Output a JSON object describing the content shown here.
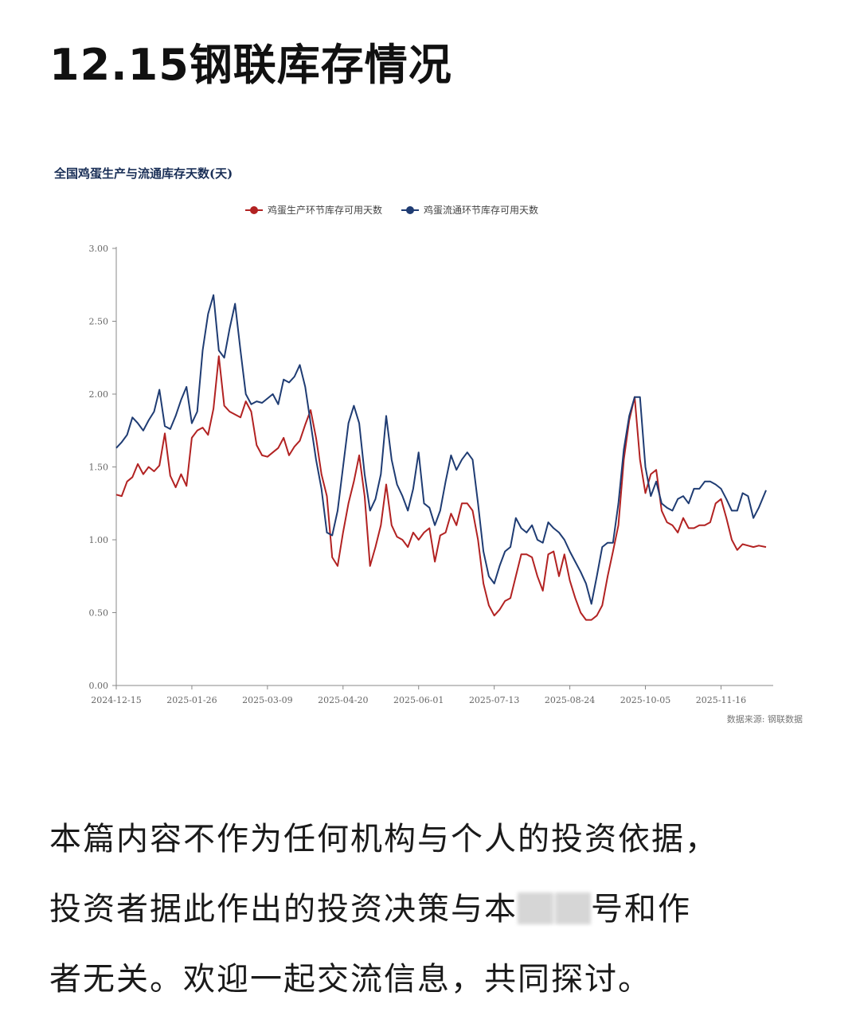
{
  "header": {
    "title": "12.15钢联库存情况"
  },
  "chart_data": {
    "type": "line",
    "title": "全国鸡蛋生产与流通库存天数(天)",
    "source": "数据来源: 钢联数据",
    "x_ticks": [
      "2024-12-15",
      "2025-01-26",
      "2025-03-09",
      "2025-04-20",
      "2025-06-01",
      "2025-07-13",
      "2025-08-24",
      "2025-10-05",
      "2025-11-16"
    ],
    "y_ticks": [
      "0.00",
      "0.50",
      "1.00",
      "1.50",
      "2.00",
      "2.50",
      "3.00"
    ],
    "ylim": [
      0,
      3
    ],
    "xlim": [
      "2024-12-15",
      "2025-12-15"
    ],
    "legend_position": "top",
    "grid": false,
    "series": [
      {
        "name": "鸡蛋生产环节库存可用天数",
        "color": "#b22222",
        "points": [
          [
            "2024-12-15",
            1.31
          ],
          [
            "2024-12-18",
            1.3
          ],
          [
            "2024-12-21",
            1.4
          ],
          [
            "2024-12-24",
            1.43
          ],
          [
            "2024-12-27",
            1.52
          ],
          [
            "2024-12-30",
            1.45
          ],
          [
            "2025-01-02",
            1.5
          ],
          [
            "2025-01-05",
            1.47
          ],
          [
            "2025-01-08",
            1.51
          ],
          [
            "2025-01-11",
            1.73
          ],
          [
            "2025-01-14",
            1.44
          ],
          [
            "2025-01-17",
            1.36
          ],
          [
            "2025-01-20",
            1.45
          ],
          [
            "2025-01-23",
            1.37
          ],
          [
            "2025-01-26",
            1.7
          ],
          [
            "2025-01-29",
            1.75
          ],
          [
            "2025-02-01",
            1.77
          ],
          [
            "2025-02-04",
            1.72
          ],
          [
            "2025-02-07",
            1.9
          ],
          [
            "2025-02-10",
            2.26
          ],
          [
            "2025-02-13",
            1.92
          ],
          [
            "2025-02-16",
            1.88
          ],
          [
            "2025-02-19",
            1.86
          ],
          [
            "2025-02-22",
            1.84
          ],
          [
            "2025-02-25",
            1.95
          ],
          [
            "2025-02-28",
            1.88
          ],
          [
            "2025-03-03",
            1.65
          ],
          [
            "2025-03-06",
            1.58
          ],
          [
            "2025-03-09",
            1.57
          ],
          [
            "2025-03-12",
            1.6
          ],
          [
            "2025-03-15",
            1.63
          ],
          [
            "2025-03-18",
            1.7
          ],
          [
            "2025-03-21",
            1.58
          ],
          [
            "2025-03-24",
            1.64
          ],
          [
            "2025-03-27",
            1.68
          ],
          [
            "2025-03-30",
            1.79
          ],
          [
            "2025-04-02",
            1.89
          ],
          [
            "2025-04-05",
            1.7
          ],
          [
            "2025-04-08",
            1.45
          ],
          [
            "2025-04-11",
            1.3
          ],
          [
            "2025-04-14",
            0.88
          ],
          [
            "2025-04-17",
            0.82
          ],
          [
            "2025-04-20",
            1.05
          ],
          [
            "2025-04-23",
            1.25
          ],
          [
            "2025-04-26",
            1.4
          ],
          [
            "2025-04-29",
            1.58
          ],
          [
            "2025-05-02",
            1.3
          ],
          [
            "2025-05-05",
            0.82
          ],
          [
            "2025-05-08",
            0.95
          ],
          [
            "2025-05-11",
            1.1
          ],
          [
            "2025-05-14",
            1.38
          ],
          [
            "2025-05-17",
            1.1
          ],
          [
            "2025-05-20",
            1.02
          ],
          [
            "2025-05-23",
            1.0
          ],
          [
            "2025-05-26",
            0.95
          ],
          [
            "2025-05-29",
            1.05
          ],
          [
            "2025-06-01",
            1.0
          ],
          [
            "2025-06-04",
            1.05
          ],
          [
            "2025-06-07",
            1.08
          ],
          [
            "2025-06-10",
            0.85
          ],
          [
            "2025-06-13",
            1.03
          ],
          [
            "2025-06-16",
            1.05
          ],
          [
            "2025-06-19",
            1.18
          ],
          [
            "2025-06-22",
            1.1
          ],
          [
            "2025-06-25",
            1.25
          ],
          [
            "2025-06-28",
            1.25
          ],
          [
            "2025-07-01",
            1.2
          ],
          [
            "2025-07-04",
            1.0
          ],
          [
            "2025-07-07",
            0.7
          ],
          [
            "2025-07-10",
            0.55
          ],
          [
            "2025-07-13",
            0.48
          ],
          [
            "2025-07-16",
            0.52
          ],
          [
            "2025-07-19",
            0.58
          ],
          [
            "2025-07-22",
            0.6
          ],
          [
            "2025-07-25",
            0.75
          ],
          [
            "2025-07-28",
            0.9
          ],
          [
            "2025-07-31",
            0.9
          ],
          [
            "2025-08-03",
            0.88
          ],
          [
            "2025-08-06",
            0.75
          ],
          [
            "2025-08-09",
            0.65
          ],
          [
            "2025-08-12",
            0.9
          ],
          [
            "2025-08-15",
            0.92
          ],
          [
            "2025-08-18",
            0.75
          ],
          [
            "2025-08-21",
            0.9
          ],
          [
            "2025-08-24",
            0.72
          ],
          [
            "2025-08-27",
            0.6
          ],
          [
            "2025-08-30",
            0.5
          ],
          [
            "2025-09-02",
            0.45
          ],
          [
            "2025-09-05",
            0.45
          ],
          [
            "2025-09-08",
            0.48
          ],
          [
            "2025-09-11",
            0.55
          ],
          [
            "2025-09-14",
            0.75
          ],
          [
            "2025-09-17",
            0.92
          ],
          [
            "2025-09-20",
            1.1
          ],
          [
            "2025-09-23",
            1.55
          ],
          [
            "2025-09-26",
            1.82
          ],
          [
            "2025-09-29",
            1.98
          ],
          [
            "2025-10-02",
            1.55
          ],
          [
            "2025-10-05",
            1.32
          ],
          [
            "2025-10-08",
            1.45
          ],
          [
            "2025-10-11",
            1.48
          ],
          [
            "2025-10-14",
            1.2
          ],
          [
            "2025-10-17",
            1.12
          ],
          [
            "2025-10-20",
            1.1
          ],
          [
            "2025-10-23",
            1.05
          ],
          [
            "2025-10-26",
            1.15
          ],
          [
            "2025-10-29",
            1.08
          ],
          [
            "2025-11-01",
            1.08
          ],
          [
            "2025-11-04",
            1.1
          ],
          [
            "2025-11-07",
            1.1
          ],
          [
            "2025-11-10",
            1.12
          ],
          [
            "2025-11-13",
            1.25
          ],
          [
            "2025-11-16",
            1.28
          ],
          [
            "2025-11-19",
            1.15
          ],
          [
            "2025-11-22",
            1.0
          ],
          [
            "2025-11-25",
            0.93
          ],
          [
            "2025-11-28",
            0.97
          ],
          [
            "2025-12-01",
            0.96
          ],
          [
            "2025-12-04",
            0.95
          ],
          [
            "2025-12-07",
            0.96
          ],
          [
            "2025-12-11",
            0.95
          ]
        ]
      },
      {
        "name": "鸡蛋流通环节库存可用天数",
        "color": "#1f3c73",
        "points": [
          [
            "2024-12-15",
            1.63
          ],
          [
            "2024-12-18",
            1.67
          ],
          [
            "2024-12-21",
            1.72
          ],
          [
            "2024-12-24",
            1.84
          ],
          [
            "2024-12-27",
            1.8
          ],
          [
            "2024-12-30",
            1.75
          ],
          [
            "2025-01-02",
            1.82
          ],
          [
            "2025-01-05",
            1.88
          ],
          [
            "2025-01-08",
            2.03
          ],
          [
            "2025-01-11",
            1.78
          ],
          [
            "2025-01-14",
            1.76
          ],
          [
            "2025-01-17",
            1.85
          ],
          [
            "2025-01-20",
            1.96
          ],
          [
            "2025-01-23",
            2.05
          ],
          [
            "2025-01-26",
            1.8
          ],
          [
            "2025-01-29",
            1.88
          ],
          [
            "2025-02-01",
            2.3
          ],
          [
            "2025-02-04",
            2.55
          ],
          [
            "2025-02-07",
            2.68
          ],
          [
            "2025-02-10",
            2.3
          ],
          [
            "2025-02-13",
            2.25
          ],
          [
            "2025-02-16",
            2.45
          ],
          [
            "2025-02-19",
            2.62
          ],
          [
            "2025-02-22",
            2.3
          ],
          [
            "2025-02-25",
            2.0
          ],
          [
            "2025-02-28",
            1.93
          ],
          [
            "2025-03-03",
            1.95
          ],
          [
            "2025-03-06",
            1.94
          ],
          [
            "2025-03-09",
            1.97
          ],
          [
            "2025-03-12",
            2.0
          ],
          [
            "2025-03-15",
            1.93
          ],
          [
            "2025-03-18",
            2.1
          ],
          [
            "2025-03-21",
            2.08
          ],
          [
            "2025-03-24",
            2.12
          ],
          [
            "2025-03-27",
            2.2
          ],
          [
            "2025-03-30",
            2.05
          ],
          [
            "2025-04-02",
            1.8
          ],
          [
            "2025-04-05",
            1.55
          ],
          [
            "2025-04-08",
            1.35
          ],
          [
            "2025-04-11",
            1.05
          ],
          [
            "2025-04-14",
            1.03
          ],
          [
            "2025-04-17",
            1.2
          ],
          [
            "2025-04-20",
            1.5
          ],
          [
            "2025-04-23",
            1.8
          ],
          [
            "2025-04-26",
            1.92
          ],
          [
            "2025-04-29",
            1.8
          ],
          [
            "2025-05-02",
            1.45
          ],
          [
            "2025-05-05",
            1.2
          ],
          [
            "2025-05-08",
            1.28
          ],
          [
            "2025-05-11",
            1.45
          ],
          [
            "2025-05-14",
            1.85
          ],
          [
            "2025-05-17",
            1.55
          ],
          [
            "2025-05-20",
            1.38
          ],
          [
            "2025-05-23",
            1.3
          ],
          [
            "2025-05-26",
            1.2
          ],
          [
            "2025-05-29",
            1.35
          ],
          [
            "2025-06-01",
            1.6
          ],
          [
            "2025-06-04",
            1.25
          ],
          [
            "2025-06-07",
            1.22
          ],
          [
            "2025-06-10",
            1.1
          ],
          [
            "2025-06-13",
            1.2
          ],
          [
            "2025-06-16",
            1.4
          ],
          [
            "2025-06-19",
            1.58
          ],
          [
            "2025-06-22",
            1.48
          ],
          [
            "2025-06-25",
            1.55
          ],
          [
            "2025-06-28",
            1.6
          ],
          [
            "2025-07-01",
            1.55
          ],
          [
            "2025-07-04",
            1.25
          ],
          [
            "2025-07-07",
            0.92
          ],
          [
            "2025-07-10",
            0.75
          ],
          [
            "2025-07-13",
            0.7
          ],
          [
            "2025-07-16",
            0.82
          ],
          [
            "2025-07-19",
            0.92
          ],
          [
            "2025-07-22",
            0.95
          ],
          [
            "2025-07-25",
            1.15
          ],
          [
            "2025-07-28",
            1.08
          ],
          [
            "2025-07-31",
            1.05
          ],
          [
            "2025-08-03",
            1.1
          ],
          [
            "2025-08-06",
            1.0
          ],
          [
            "2025-08-09",
            0.98
          ],
          [
            "2025-08-12",
            1.12
          ],
          [
            "2025-08-15",
            1.08
          ],
          [
            "2025-08-18",
            1.05
          ],
          [
            "2025-08-21",
            1.0
          ],
          [
            "2025-08-24",
            0.92
          ],
          [
            "2025-08-27",
            0.85
          ],
          [
            "2025-08-30",
            0.78
          ],
          [
            "2025-09-02",
            0.7
          ],
          [
            "2025-09-05",
            0.56
          ],
          [
            "2025-09-08",
            0.75
          ],
          [
            "2025-09-11",
            0.95
          ],
          [
            "2025-09-14",
            0.98
          ],
          [
            "2025-09-17",
            0.98
          ],
          [
            "2025-09-20",
            1.25
          ],
          [
            "2025-09-23",
            1.62
          ],
          [
            "2025-09-26",
            1.85
          ],
          [
            "2025-09-29",
            1.98
          ],
          [
            "2025-10-02",
            1.98
          ],
          [
            "2025-10-05",
            1.5
          ],
          [
            "2025-10-08",
            1.3
          ],
          [
            "2025-10-11",
            1.4
          ],
          [
            "2025-10-14",
            1.25
          ],
          [
            "2025-10-17",
            1.22
          ],
          [
            "2025-10-20",
            1.2
          ],
          [
            "2025-10-23",
            1.28
          ],
          [
            "2025-10-26",
            1.3
          ],
          [
            "2025-10-29",
            1.25
          ],
          [
            "2025-11-01",
            1.35
          ],
          [
            "2025-11-04",
            1.35
          ],
          [
            "2025-11-07",
            1.4
          ],
          [
            "2025-11-10",
            1.4
          ],
          [
            "2025-11-13",
            1.38
          ],
          [
            "2025-11-16",
            1.35
          ],
          [
            "2025-11-19",
            1.28
          ],
          [
            "2025-11-22",
            1.2
          ],
          [
            "2025-11-25",
            1.2
          ],
          [
            "2025-11-28",
            1.32
          ],
          [
            "2025-12-01",
            1.3
          ],
          [
            "2025-12-04",
            1.15
          ],
          [
            "2025-12-07",
            1.22
          ],
          [
            "2025-12-11",
            1.34
          ]
        ]
      }
    ]
  },
  "disclaimer": {
    "line1": "本篇内容不作为任何机构与个人的投资依据，",
    "line2a": "投资者据此作出的投资决策与本",
    "line2b": "号和作",
    "line3": "者无关。欢迎一起交流信息，共同探讨。"
  }
}
